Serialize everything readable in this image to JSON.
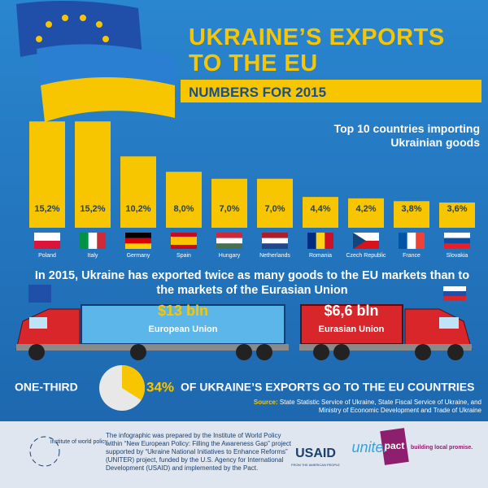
{
  "chart_data": [
    {
      "type": "bar",
      "title": "UKRAINE’S EXPORTS TO THE EU",
      "subtitle": "NUMBERS FOR 2015",
      "annotation": "Top 10 countries importing Ukrainian goods",
      "categories": [
        "Poland",
        "Italy",
        "Germany",
        "Spain",
        "Hungary",
        "Netherlands",
        "Romania",
        "Czech Republic",
        "France",
        "Slovakia"
      ],
      "values": [
        15.2,
        15.2,
        10.2,
        8.0,
        7.0,
        7.0,
        4.4,
        4.2,
        3.8,
        3.6
      ],
      "value_labels": [
        "15,2%",
        "15,2%",
        "10,2%",
        "8,0%",
        "7,0%",
        "7,0%",
        "4,4%",
        "4,2%",
        "3,8%",
        "3,6%"
      ],
      "color": "#f7c600"
    },
    {
      "type": "pie",
      "label": "ONE-THIRD",
      "values": [
        34
      ],
      "value_labels": [
        "34%"
      ],
      "caption": "OF UKRAINE’S EXPORTS GO TO THE EU COUNTRIES",
      "color": "#f7c600"
    }
  ],
  "comparison": {
    "text": "In 2015, Ukraine has exported twice as many goods to the EU markets than to the markets of the Eurasian Union",
    "trucks": [
      {
        "amount": "$13 bln",
        "name": "European Union"
      },
      {
        "amount": "$6,6 bln",
        "name": "Eurasian Union"
      }
    ]
  },
  "source": {
    "label": "Source:",
    "text": "State Statistic Service of Ukraine, State Fiscal Service of Ukraine, and Ministry of Economic Development and Trade of Ukraine"
  },
  "footer": {
    "org": "institute of world policy",
    "credit": "The infographic was prepared by the Institute of World Policy within “New European Policy: Filling the Awareness Gap” project supported by “Ukraine National Initiatives to Enhance Reforms” (UNITER) project, funded by the U.S. Agency for International Development (USAID) and implemented by the Pact.",
    "logos": [
      "USAID",
      "FROM THE AMERICAN PEOPLE",
      "uniter",
      "pact",
      "building local promise."
    ]
  }
}
